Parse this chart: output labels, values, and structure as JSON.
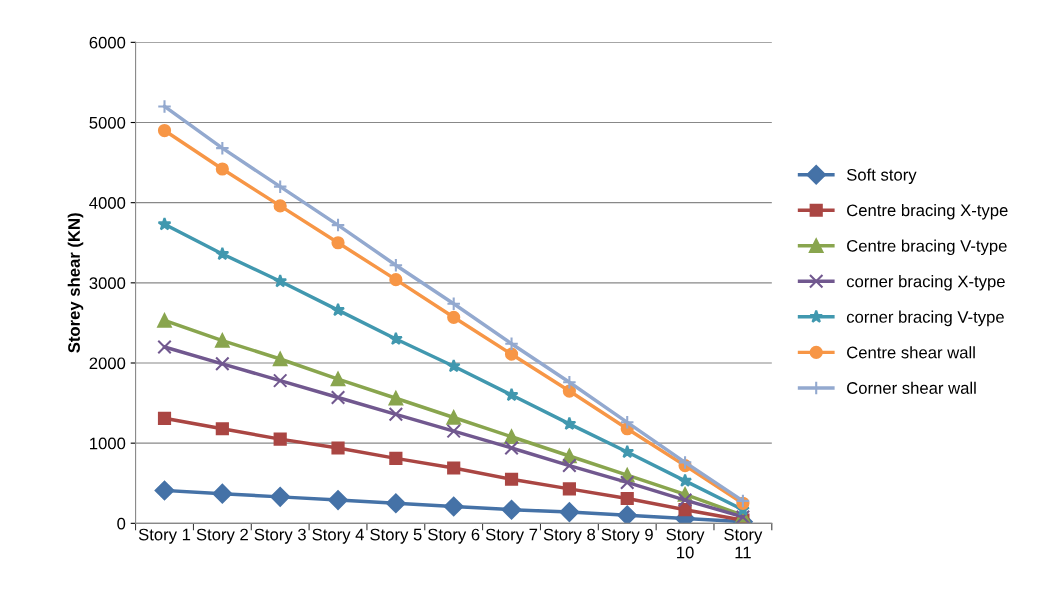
{
  "chart_data": {
    "type": "line",
    "ylabel": "Storey shear (KN)",
    "categories": [
      "Story 1",
      "Story 2",
      "Story 3",
      "Story 4",
      "Story 5",
      "Story 6",
      "Story 7",
      "Story 8",
      "Story 9",
      "Story 10",
      "Story 11"
    ],
    "series": [
      {
        "name": "Soft story",
        "color": "#4572a7",
        "marker": "diamond",
        "values": [
          410,
          370,
          330,
          290,
          250,
          210,
          170,
          140,
          100,
          60,
          20
        ]
      },
      {
        "name": "Centre bracing X-type",
        "color": "#aa4643",
        "marker": "square",
        "values": [
          1310,
          1180,
          1050,
          940,
          810,
          690,
          550,
          430,
          310,
          170,
          40
        ]
      },
      {
        "name": "Centre bracing V-type",
        "color": "#89a54e",
        "marker": "triangle",
        "values": [
          2530,
          2280,
          2050,
          1800,
          1560,
          1320,
          1080,
          840,
          600,
          360,
          100
        ]
      },
      {
        "name": "corner bracing X-type",
        "color": "#71588f",
        "marker": "cross",
        "values": [
          2200,
          1990,
          1780,
          1570,
          1360,
          1150,
          940,
          720,
          510,
          290,
          80
        ]
      },
      {
        "name": "corner bracing V-type",
        "color": "#4198af",
        "marker": "star",
        "values": [
          3730,
          3360,
          3020,
          2660,
          2300,
          1960,
          1600,
          1240,
          890,
          530,
          170
        ]
      },
      {
        "name": "Centre shear wall",
        "color": "#f79646",
        "marker": "circle",
        "values": [
          4900,
          4420,
          3960,
          3500,
          3040,
          2570,
          2110,
          1650,
          1180,
          720,
          250
        ]
      },
      {
        "name": "Corner shear wall",
        "color": "#93a9cf",
        "marker": "plus",
        "values": [
          5200,
          4680,
          4200,
          3720,
          3220,
          2740,
          2240,
          1760,
          1260,
          760,
          280
        ]
      }
    ],
    "ylim": [
      0,
      6000
    ],
    "yticks": [
      0,
      1000,
      2000,
      3000,
      4000,
      5000,
      6000
    ],
    "grid": "y",
    "legend": "right",
    "line_style": "solid"
  }
}
